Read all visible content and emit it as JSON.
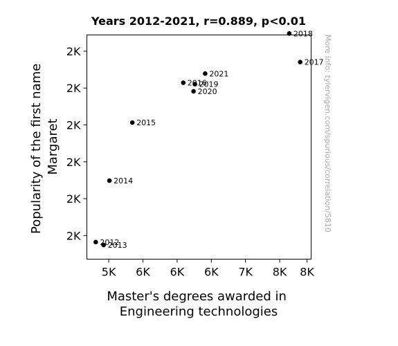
{
  "chart_data": {
    "type": "scatter",
    "title": "Years 2012-2021, r=0.889, p<0.01",
    "xlabel": [
      "Master's degrees awarded in",
      "Engineering technologies"
    ],
    "ylabel": [
      "Popularity of the first name",
      "Margaret"
    ],
    "xlim": [
      4680,
      7960
    ],
    "ylim": [
      1622,
      1698
    ],
    "x_ticks": [
      {
        "value": 5000,
        "label": "5K"
      },
      {
        "value": 5500,
        "label": "6K"
      },
      {
        "value": 6000,
        "label": "6K"
      },
      {
        "value": 6500,
        "label": "6K"
      },
      {
        "value": 7000,
        "label": "7K"
      },
      {
        "value": 7500,
        "label": "8K"
      },
      {
        "value": 7900,
        "label": "8K"
      }
    ],
    "y_ticks": [
      {
        "value": 1630,
        "label": "2K"
      },
      {
        "value": 1642.5,
        "label": "2K"
      },
      {
        "value": 1655,
        "label": "2K"
      },
      {
        "value": 1667.5,
        "label": "2K"
      },
      {
        "value": 1680,
        "label": "2K"
      },
      {
        "value": 1692.5,
        "label": "2K"
      }
    ],
    "points": [
      {
        "year": "2012",
        "x": 4810,
        "y": 1627.8
      },
      {
        "year": "2013",
        "x": 4925,
        "y": 1626.8
      },
      {
        "year": "2014",
        "x": 5010,
        "y": 1648.6
      },
      {
        "year": "2015",
        "x": 5345,
        "y": 1668.3
      },
      {
        "year": "2016",
        "x": 6090,
        "y": 1681.8
      },
      {
        "year": "2017",
        "x": 7800,
        "y": 1688.8
      },
      {
        "year": "2018",
        "x": 7640,
        "y": 1698.5
      },
      {
        "year": "2019",
        "x": 6260,
        "y": 1681.3
      },
      {
        "year": "2020",
        "x": 6240,
        "y": 1678.9
      },
      {
        "year": "2021",
        "x": 6410,
        "y": 1684.9
      }
    ],
    "marker_color": "#000000",
    "grid": false,
    "legend": "none"
  },
  "watermark": "More info: tylervigen.com/spurious/correlation/5810"
}
